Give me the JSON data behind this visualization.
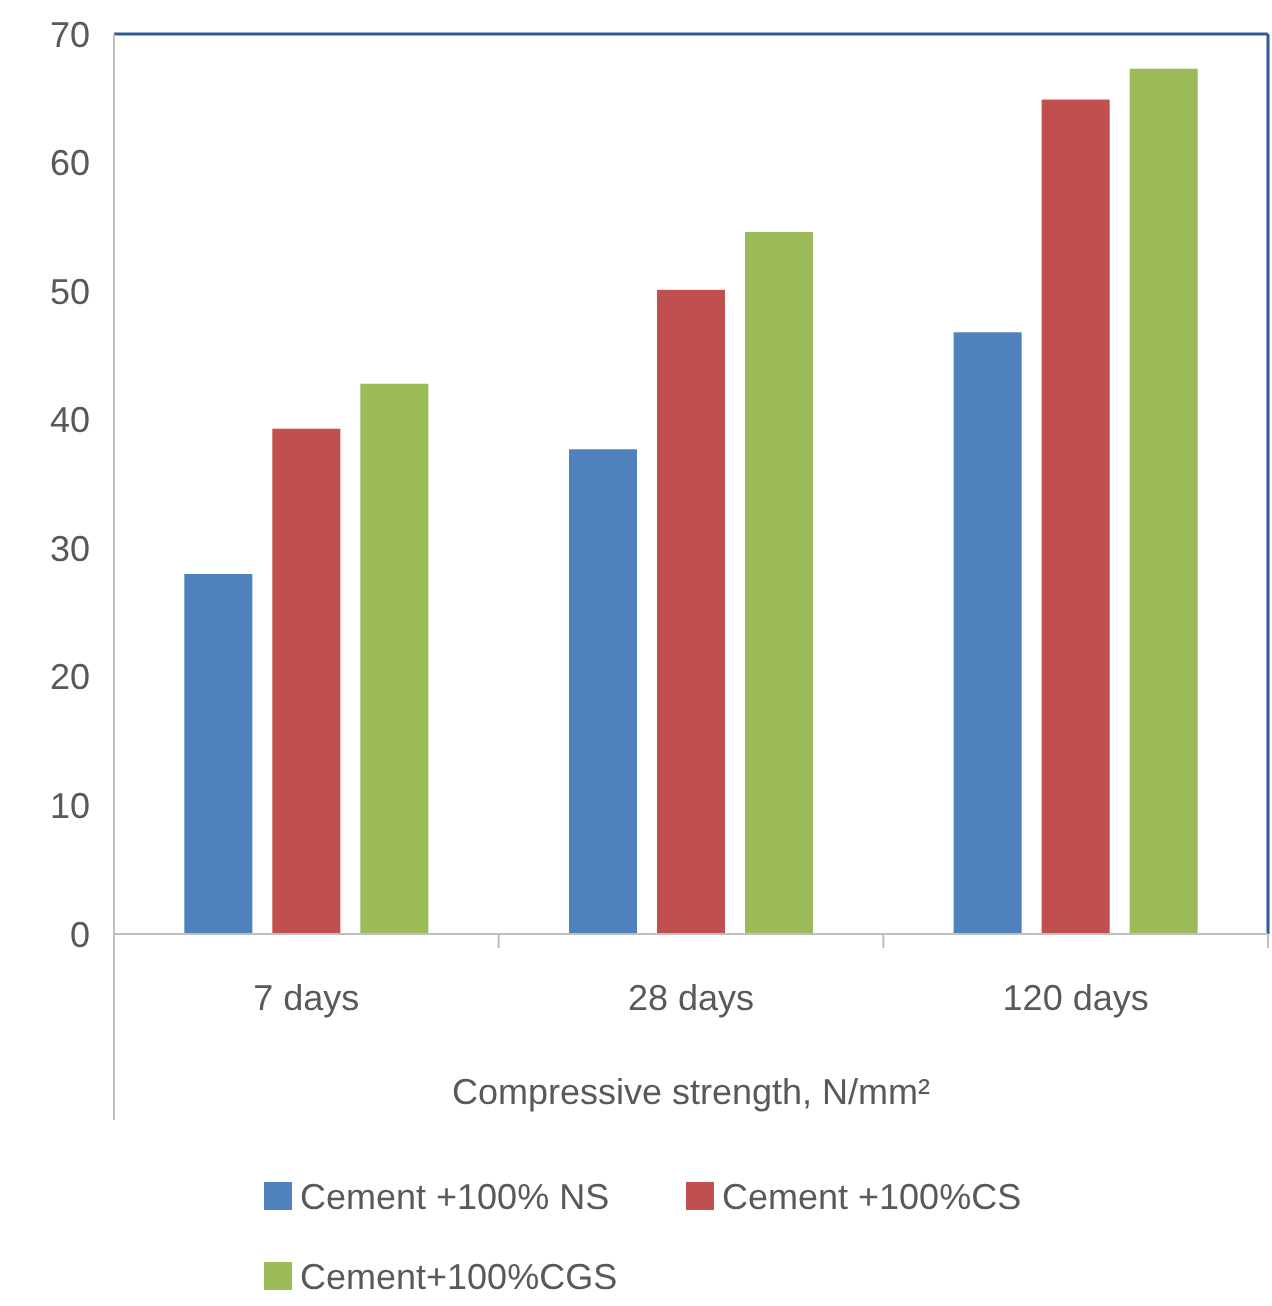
{
  "chart_data": {
    "type": "bar",
    "xlabel": "Compressive strength, N/mm²",
    "categories": [
      "7 days",
      "28 days",
      "120 days"
    ],
    "series": [
      {
        "name": "Cement +100% NS",
        "color": "#4f81bd",
        "values": [
          28.0,
          37.7,
          46.8
        ]
      },
      {
        "name": "Cement +100%CS",
        "color": "#c0504d",
        "values": [
          39.3,
          50.1,
          64.9
        ]
      },
      {
        "name": "Cement+100%CGS",
        "color": "#9bbb59",
        "values": [
          42.8,
          54.6,
          67.3
        ]
      }
    ],
    "ylim": [
      0,
      70
    ],
    "yticks": [
      0,
      10,
      20,
      30,
      40,
      50,
      60,
      70
    ],
    "grid": false,
    "legend": "bottom"
  }
}
